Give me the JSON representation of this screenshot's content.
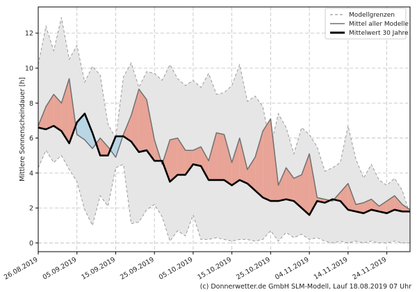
{
  "chart_data": {
    "type": "line",
    "title": "",
    "xlabel": "",
    "ylabel": "Mittlere Sonnenscheindauer [h]",
    "xlim": [
      "2019-08-26",
      "2019-11-30"
    ],
    "ylim": [
      -0.5,
      13.5
    ],
    "x_ticks": [
      "26.08.2019",
      "05.09.2019",
      "15.09.2019",
      "25.09.2019",
      "05.10.2019",
      "15.10.2019",
      "25.10.2019",
      "04.11.2019",
      "14.11.2019",
      "24.11.2019"
    ],
    "y_ticks": [
      "0",
      "2",
      "4",
      "6",
      "8",
      "10",
      "12"
    ],
    "grid": true,
    "legend_position": "top-right",
    "legend": [
      {
        "label": "Modellgrenzen",
        "style": "dashed-gray"
      },
      {
        "label": "Mittel aller Modelle",
        "style": "solid-gray"
      },
      {
        "label": "Mittelwert 30 Jahre",
        "style": "thick-black"
      }
    ],
    "colors": {
      "band_fill": "#e6e6e6",
      "band_edge": "#9a9a9a",
      "model_mean": "#707070",
      "climatology": "#000000",
      "above_climatology": "#e8a496",
      "below_climatology": "#b9d6e6",
      "grid": "#bdbdbd"
    },
    "series": [
      {
        "name": "Modellgrenzen",
        "role": "band",
        "x": [
          "2019-08-26",
          "2019-08-28",
          "2019-08-30",
          "2019-09-01",
          "2019-09-03",
          "2019-09-05",
          "2019-09-07",
          "2019-09-09",
          "2019-09-11",
          "2019-09-13",
          "2019-09-15",
          "2019-09-17",
          "2019-09-19",
          "2019-09-21",
          "2019-09-23",
          "2019-09-25",
          "2019-09-27",
          "2019-09-29",
          "2019-10-01",
          "2019-10-03",
          "2019-10-05",
          "2019-10-07",
          "2019-10-09",
          "2019-10-11",
          "2019-10-13",
          "2019-10-15",
          "2019-10-17",
          "2019-10-19",
          "2019-10-21",
          "2019-10-23",
          "2019-10-25",
          "2019-10-27",
          "2019-10-29",
          "2019-10-31",
          "2019-11-02",
          "2019-11-04",
          "2019-11-06",
          "2019-11-08",
          "2019-11-10",
          "2019-11-12",
          "2019-11-14",
          "2019-11-16",
          "2019-11-18",
          "2019-11-20",
          "2019-11-22",
          "2019-11-24",
          "2019-11-26",
          "2019-11-28",
          "2019-11-30"
        ],
        "upper": [
          10.2,
          12.4,
          11.0,
          12.9,
          10.5,
          11.3,
          9.2,
          10.1,
          9.6,
          6.8,
          6.0,
          9.5,
          10.3,
          8.9,
          9.8,
          9.7,
          9.3,
          10.2,
          9.4,
          9.0,
          9.3,
          8.9,
          9.7,
          8.5,
          8.6,
          9.0,
          10.2,
          8.1,
          8.4,
          7.8,
          5.5,
          7.4,
          6.6,
          5.1,
          6.6,
          6.2,
          5.5,
          4.1,
          4.3,
          4.6,
          6.7,
          4.8,
          3.7,
          4.5,
          3.6,
          3.3,
          3.7,
          3.0,
          1.6
        ],
        "lower": [
          4.3,
          5.3,
          4.6,
          5.0,
          4.2,
          3.5,
          1.9,
          1.0,
          2.7,
          2.1,
          4.3,
          4.5,
          1.1,
          1.2,
          1.9,
          2.2,
          1.5,
          0.1,
          0.7,
          0.4,
          1.6,
          0.2,
          0.2,
          0.3,
          0.2,
          0.1,
          0.2,
          0.2,
          0.1,
          0.2,
          0.7,
          0.1,
          0.6,
          0.3,
          0.5,
          0.2,
          0.3,
          0.1,
          0.0,
          0.1,
          0.0,
          0.1,
          0.0,
          0.1,
          0.0,
          0.0,
          0.1,
          0.0,
          0.0
        ]
      },
      {
        "name": "Mittel aller Modelle",
        "x": [
          "2019-08-26",
          "2019-08-28",
          "2019-08-30",
          "2019-09-01",
          "2019-09-03",
          "2019-09-05",
          "2019-09-07",
          "2019-09-09",
          "2019-09-11",
          "2019-09-13",
          "2019-09-15",
          "2019-09-17",
          "2019-09-19",
          "2019-09-21",
          "2019-09-23",
          "2019-09-25",
          "2019-09-27",
          "2019-09-29",
          "2019-10-01",
          "2019-10-03",
          "2019-10-05",
          "2019-10-07",
          "2019-10-09",
          "2019-10-11",
          "2019-10-13",
          "2019-10-15",
          "2019-10-17",
          "2019-10-19",
          "2019-10-21",
          "2019-10-23",
          "2019-10-25",
          "2019-10-27",
          "2019-10-29",
          "2019-10-31",
          "2019-11-02",
          "2019-11-04",
          "2019-11-06",
          "2019-11-08",
          "2019-11-10",
          "2019-11-12",
          "2019-11-14",
          "2019-11-16",
          "2019-11-18",
          "2019-11-20",
          "2019-11-22",
          "2019-11-24",
          "2019-11-26",
          "2019-11-28",
          "2019-11-30"
        ],
        "values": [
          6.7,
          7.8,
          8.5,
          8.0,
          9.4,
          6.2,
          5.9,
          5.4,
          6.0,
          5.5,
          4.9,
          6.2,
          7.3,
          8.8,
          8.2,
          5.9,
          4.5,
          5.9,
          6.0,
          5.3,
          5.3,
          5.5,
          4.7,
          6.3,
          6.2,
          4.6,
          6.0,
          4.2,
          4.9,
          6.4,
          7.1,
          3.3,
          4.3,
          3.7,
          3.9,
          5.1,
          2.6,
          2.5,
          2.4,
          2.9,
          3.4,
          2.2,
          2.3,
          2.5,
          2.1,
          2.4,
          2.7,
          2.2,
          1.9
        ]
      },
      {
        "name": "Mittelwert 30 Jahre",
        "x": [
          "2019-08-26",
          "2019-08-28",
          "2019-08-30",
          "2019-09-01",
          "2019-09-03",
          "2019-09-05",
          "2019-09-07",
          "2019-09-09",
          "2019-09-11",
          "2019-09-13",
          "2019-09-15",
          "2019-09-17",
          "2019-09-19",
          "2019-09-21",
          "2019-09-23",
          "2019-09-25",
          "2019-09-27",
          "2019-09-29",
          "2019-10-01",
          "2019-10-03",
          "2019-10-05",
          "2019-10-07",
          "2019-10-09",
          "2019-10-11",
          "2019-10-13",
          "2019-10-15",
          "2019-10-17",
          "2019-10-19",
          "2019-10-21",
          "2019-10-23",
          "2019-10-25",
          "2019-10-27",
          "2019-10-29",
          "2019-10-31",
          "2019-11-02",
          "2019-11-04",
          "2019-11-06",
          "2019-11-08",
          "2019-11-10",
          "2019-11-12",
          "2019-11-14",
          "2019-11-16",
          "2019-11-18",
          "2019-11-20",
          "2019-11-22",
          "2019-11-24",
          "2019-11-26",
          "2019-11-28",
          "2019-11-30"
        ],
        "values": [
          6.6,
          6.5,
          6.7,
          6.4,
          5.7,
          6.9,
          7.4,
          6.3,
          5.0,
          5.0,
          6.1,
          6.1,
          5.8,
          5.2,
          5.3,
          4.7,
          4.7,
          3.5,
          3.9,
          3.9,
          4.5,
          4.4,
          3.6,
          3.6,
          3.6,
          3.3,
          3.6,
          3.4,
          3.0,
          2.6,
          2.4,
          2.4,
          2.5,
          2.4,
          2.0,
          1.6,
          2.4,
          2.3,
          2.5,
          2.4,
          1.9,
          1.8,
          1.7,
          1.9,
          1.8,
          1.7,
          1.9,
          1.8,
          1.8
        ]
      }
    ]
  },
  "footer": {
    "copyright": "(c) Donnerwetter.de GmbH SLM-Modell, Lauf 18.08.2019 07 Uhr"
  }
}
